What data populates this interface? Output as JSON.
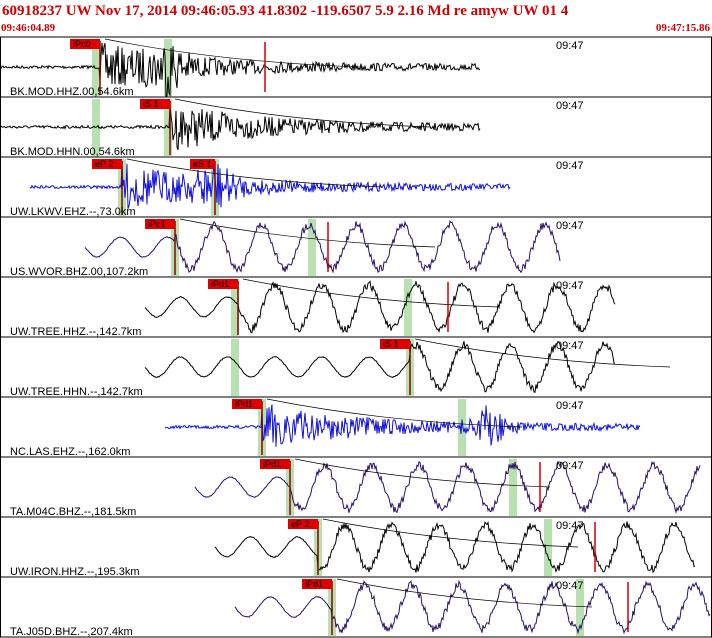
{
  "header": {
    "title": "60918237 UW Nov 17, 2014 09:46:05.93   41.8302 -119.6507  5.9 2.16 Md re amyw UW 01   4",
    "start_time": "09:46:04.89",
    "end_time": "09:47:15.86"
  },
  "traces": [
    {
      "label": "BK.MOD.HHZ.00,54.6km",
      "time_mark": "09:47",
      "pick": "iPc0"
    },
    {
      "label": "BK.MOD.HHN.00,54.6km",
      "time_mark": "09:47",
      "pick": "iS 1"
    },
    {
      "label": "UW.LKWV.EHZ.--,73.0km",
      "time_mark": "09:47",
      "pick": "eP 2",
      "pick2": "eS 1"
    },
    {
      "label": "US.WVOR.BHZ.00,107.2km",
      "time_mark": "09:47",
      "pick": "iPc1"
    },
    {
      "label": "UW.TREE.HHZ.--,142.7km",
      "time_mark": "09:47",
      "pick": "iPd1"
    },
    {
      "label": "UW.TREE.HHN.--,142.7km",
      "time_mark": "09:47",
      "pick": "iS 1"
    },
    {
      "label": "NC.LAS.EHZ.--,162.0km",
      "time_mark": "09:47",
      "pick": "iPd1"
    },
    {
      "label": "TA.M04C.BHZ.--,181.5km",
      "time_mark": "09:47",
      "pick": "iPd1"
    },
    {
      "label": "UW.IRON.HHZ.--,195.3km",
      "time_mark": "09:47",
      "pick": "eP 2"
    },
    {
      "label": "TA.J05D.BHZ.--,207.4km",
      "time_mark": "09:47",
      "pick": "iPd1"
    }
  ]
}
